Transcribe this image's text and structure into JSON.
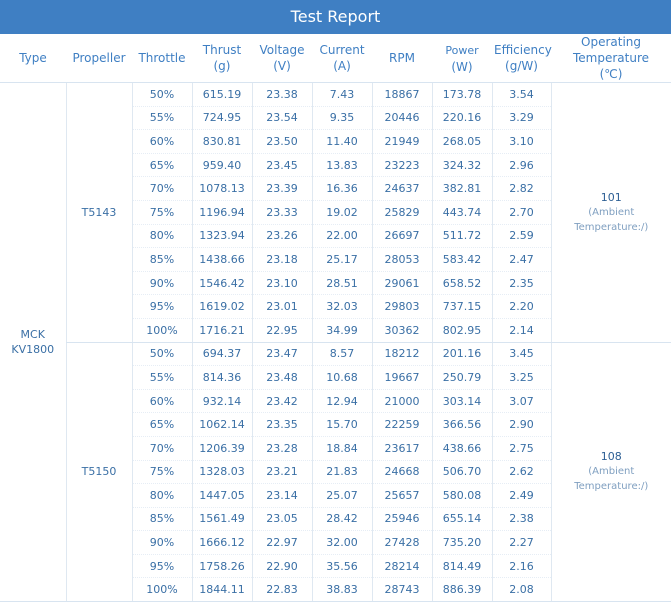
{
  "title": "Test Report",
  "columns": {
    "type": "Type",
    "propeller": "Propeller",
    "throttle": "Throttle",
    "thrust": "Thrust",
    "thrust_unit": "(g)",
    "voltage": "Voltage",
    "voltage_unit": "(V)",
    "current": "Current",
    "current_unit": "(A)",
    "rpm": "RPM",
    "power": "Power",
    "power_unit": "(W)",
    "efficiency": "Efficiency",
    "efficiency_unit": "(g/W)",
    "temp": "Operating Temperature",
    "temp_unit": "(℃)"
  },
  "motor_type": "MCK KV1800",
  "groups": [
    {
      "propeller": "T5143",
      "temperature": "101",
      "temperature_note": "(Ambient Temperature:/)",
      "rows": [
        {
          "throttle": "50%",
          "thrust": "615.19",
          "voltage": "23.38",
          "current": "7.43",
          "rpm": "18867",
          "power": "173.78",
          "efficiency": "3.54"
        },
        {
          "throttle": "55%",
          "thrust": "724.95",
          "voltage": "23.54",
          "current": "9.35",
          "rpm": "20446",
          "power": "220.16",
          "efficiency": "3.29"
        },
        {
          "throttle": "60%",
          "thrust": "830.81",
          "voltage": "23.50",
          "current": "11.40",
          "rpm": "21949",
          "power": "268.05",
          "efficiency": "3.10"
        },
        {
          "throttle": "65%",
          "thrust": "959.40",
          "voltage": "23.45",
          "current": "13.83",
          "rpm": "23223",
          "power": "324.32",
          "efficiency": "2.96"
        },
        {
          "throttle": "70%",
          "thrust": "1078.13",
          "voltage": "23.39",
          "current": "16.36",
          "rpm": "24637",
          "power": "382.81",
          "efficiency": "2.82"
        },
        {
          "throttle": "75%",
          "thrust": "1196.94",
          "voltage": "23.33",
          "current": "19.02",
          "rpm": "25829",
          "power": "443.74",
          "efficiency": "2.70"
        },
        {
          "throttle": "80%",
          "thrust": "1323.94",
          "voltage": "23.26",
          "current": "22.00",
          "rpm": "26697",
          "power": "511.72",
          "efficiency": "2.59"
        },
        {
          "throttle": "85%",
          "thrust": "1438.66",
          "voltage": "23.18",
          "current": "25.17",
          "rpm": "28053",
          "power": "583.42",
          "efficiency": "2.47"
        },
        {
          "throttle": "90%",
          "thrust": "1546.42",
          "voltage": "23.10",
          "current": "28.51",
          "rpm": "29061",
          "power": "658.52",
          "efficiency": "2.35"
        },
        {
          "throttle": "95%",
          "thrust": "1619.02",
          "voltage": "23.01",
          "current": "32.03",
          "rpm": "29803",
          "power": "737.15",
          "efficiency": "2.20"
        },
        {
          "throttle": "100%",
          "thrust": "1716.21",
          "voltage": "22.95",
          "current": "34.99",
          "rpm": "30362",
          "power": "802.95",
          "efficiency": "2.14"
        }
      ]
    },
    {
      "propeller": "T5150",
      "temperature": "108",
      "temperature_note": "(Ambient Temperature:/)",
      "rows": [
        {
          "throttle": "50%",
          "thrust": "694.37",
          "voltage": "23.47",
          "current": "8.57",
          "rpm": "18212",
          "power": "201.16",
          "efficiency": "3.45"
        },
        {
          "throttle": "55%",
          "thrust": "814.36",
          "voltage": "23.48",
          "current": "10.68",
          "rpm": "19667",
          "power": "250.79",
          "efficiency": "3.25"
        },
        {
          "throttle": "60%",
          "thrust": "932.14",
          "voltage": "23.42",
          "current": "12.94",
          "rpm": "21000",
          "power": "303.14",
          "efficiency": "3.07"
        },
        {
          "throttle": "65%",
          "thrust": "1062.14",
          "voltage": "23.35",
          "current": "15.70",
          "rpm": "22259",
          "power": "366.56",
          "efficiency": "2.90"
        },
        {
          "throttle": "70%",
          "thrust": "1206.39",
          "voltage": "23.28",
          "current": "18.84",
          "rpm": "23617",
          "power": "438.66",
          "efficiency": "2.75"
        },
        {
          "throttle": "75%",
          "thrust": "1328.03",
          "voltage": "23.21",
          "current": "21.83",
          "rpm": "24668",
          "power": "506.70",
          "efficiency": "2.62"
        },
        {
          "throttle": "80%",
          "thrust": "1447.05",
          "voltage": "23.14",
          "current": "25.07",
          "rpm": "25657",
          "power": "580.08",
          "efficiency": "2.49"
        },
        {
          "throttle": "85%",
          "thrust": "1561.49",
          "voltage": "23.05",
          "current": "28.42",
          "rpm": "25946",
          "power": "655.14",
          "efficiency": "2.38"
        },
        {
          "throttle": "90%",
          "thrust": "1666.12",
          "voltage": "22.97",
          "current": "32.00",
          "rpm": "27428",
          "power": "735.20",
          "efficiency": "2.27"
        },
        {
          "throttle": "95%",
          "thrust": "1758.26",
          "voltage": "22.90",
          "current": "35.56",
          "rpm": "28214",
          "power": "814.49",
          "efficiency": "2.16"
        },
        {
          "throttle": "100%",
          "thrust": "1844.11",
          "voltage": "22.83",
          "current": "38.83",
          "rpm": "28743",
          "power": "886.39",
          "efficiency": "2.08"
        }
      ]
    }
  ]
}
